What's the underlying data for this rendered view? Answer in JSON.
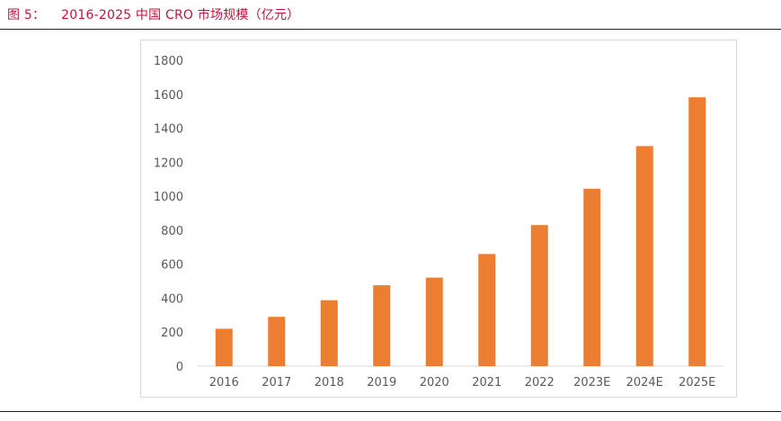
{
  "figure": {
    "label": "图 5：",
    "title": "2016-2025 中国 CRO 市场规模（亿元）"
  },
  "colors": {
    "title": "#C0143C",
    "bar": "#ED7D31",
    "axis": "#d9d9d9",
    "tick_text": "#595959"
  },
  "chart_data": {
    "type": "bar",
    "title": "2016-2025 中国 CRO 市场规模（亿元）",
    "xlabel": "",
    "ylabel": "",
    "categories": [
      "2016",
      "2017",
      "2018",
      "2019",
      "2020",
      "2021",
      "2022",
      "2023E",
      "2024E",
      "2025E"
    ],
    "values": [
      220,
      290,
      388,
      476,
      521,
      660,
      830,
      1044,
      1295,
      1582
    ],
    "ylim": [
      0,
      1800
    ],
    "yticks": [
      "0",
      "200",
      "400",
      "600",
      "800",
      "1000",
      "1200",
      "1400",
      "1600",
      "1800"
    ],
    "grid": false,
    "legend": "none"
  }
}
